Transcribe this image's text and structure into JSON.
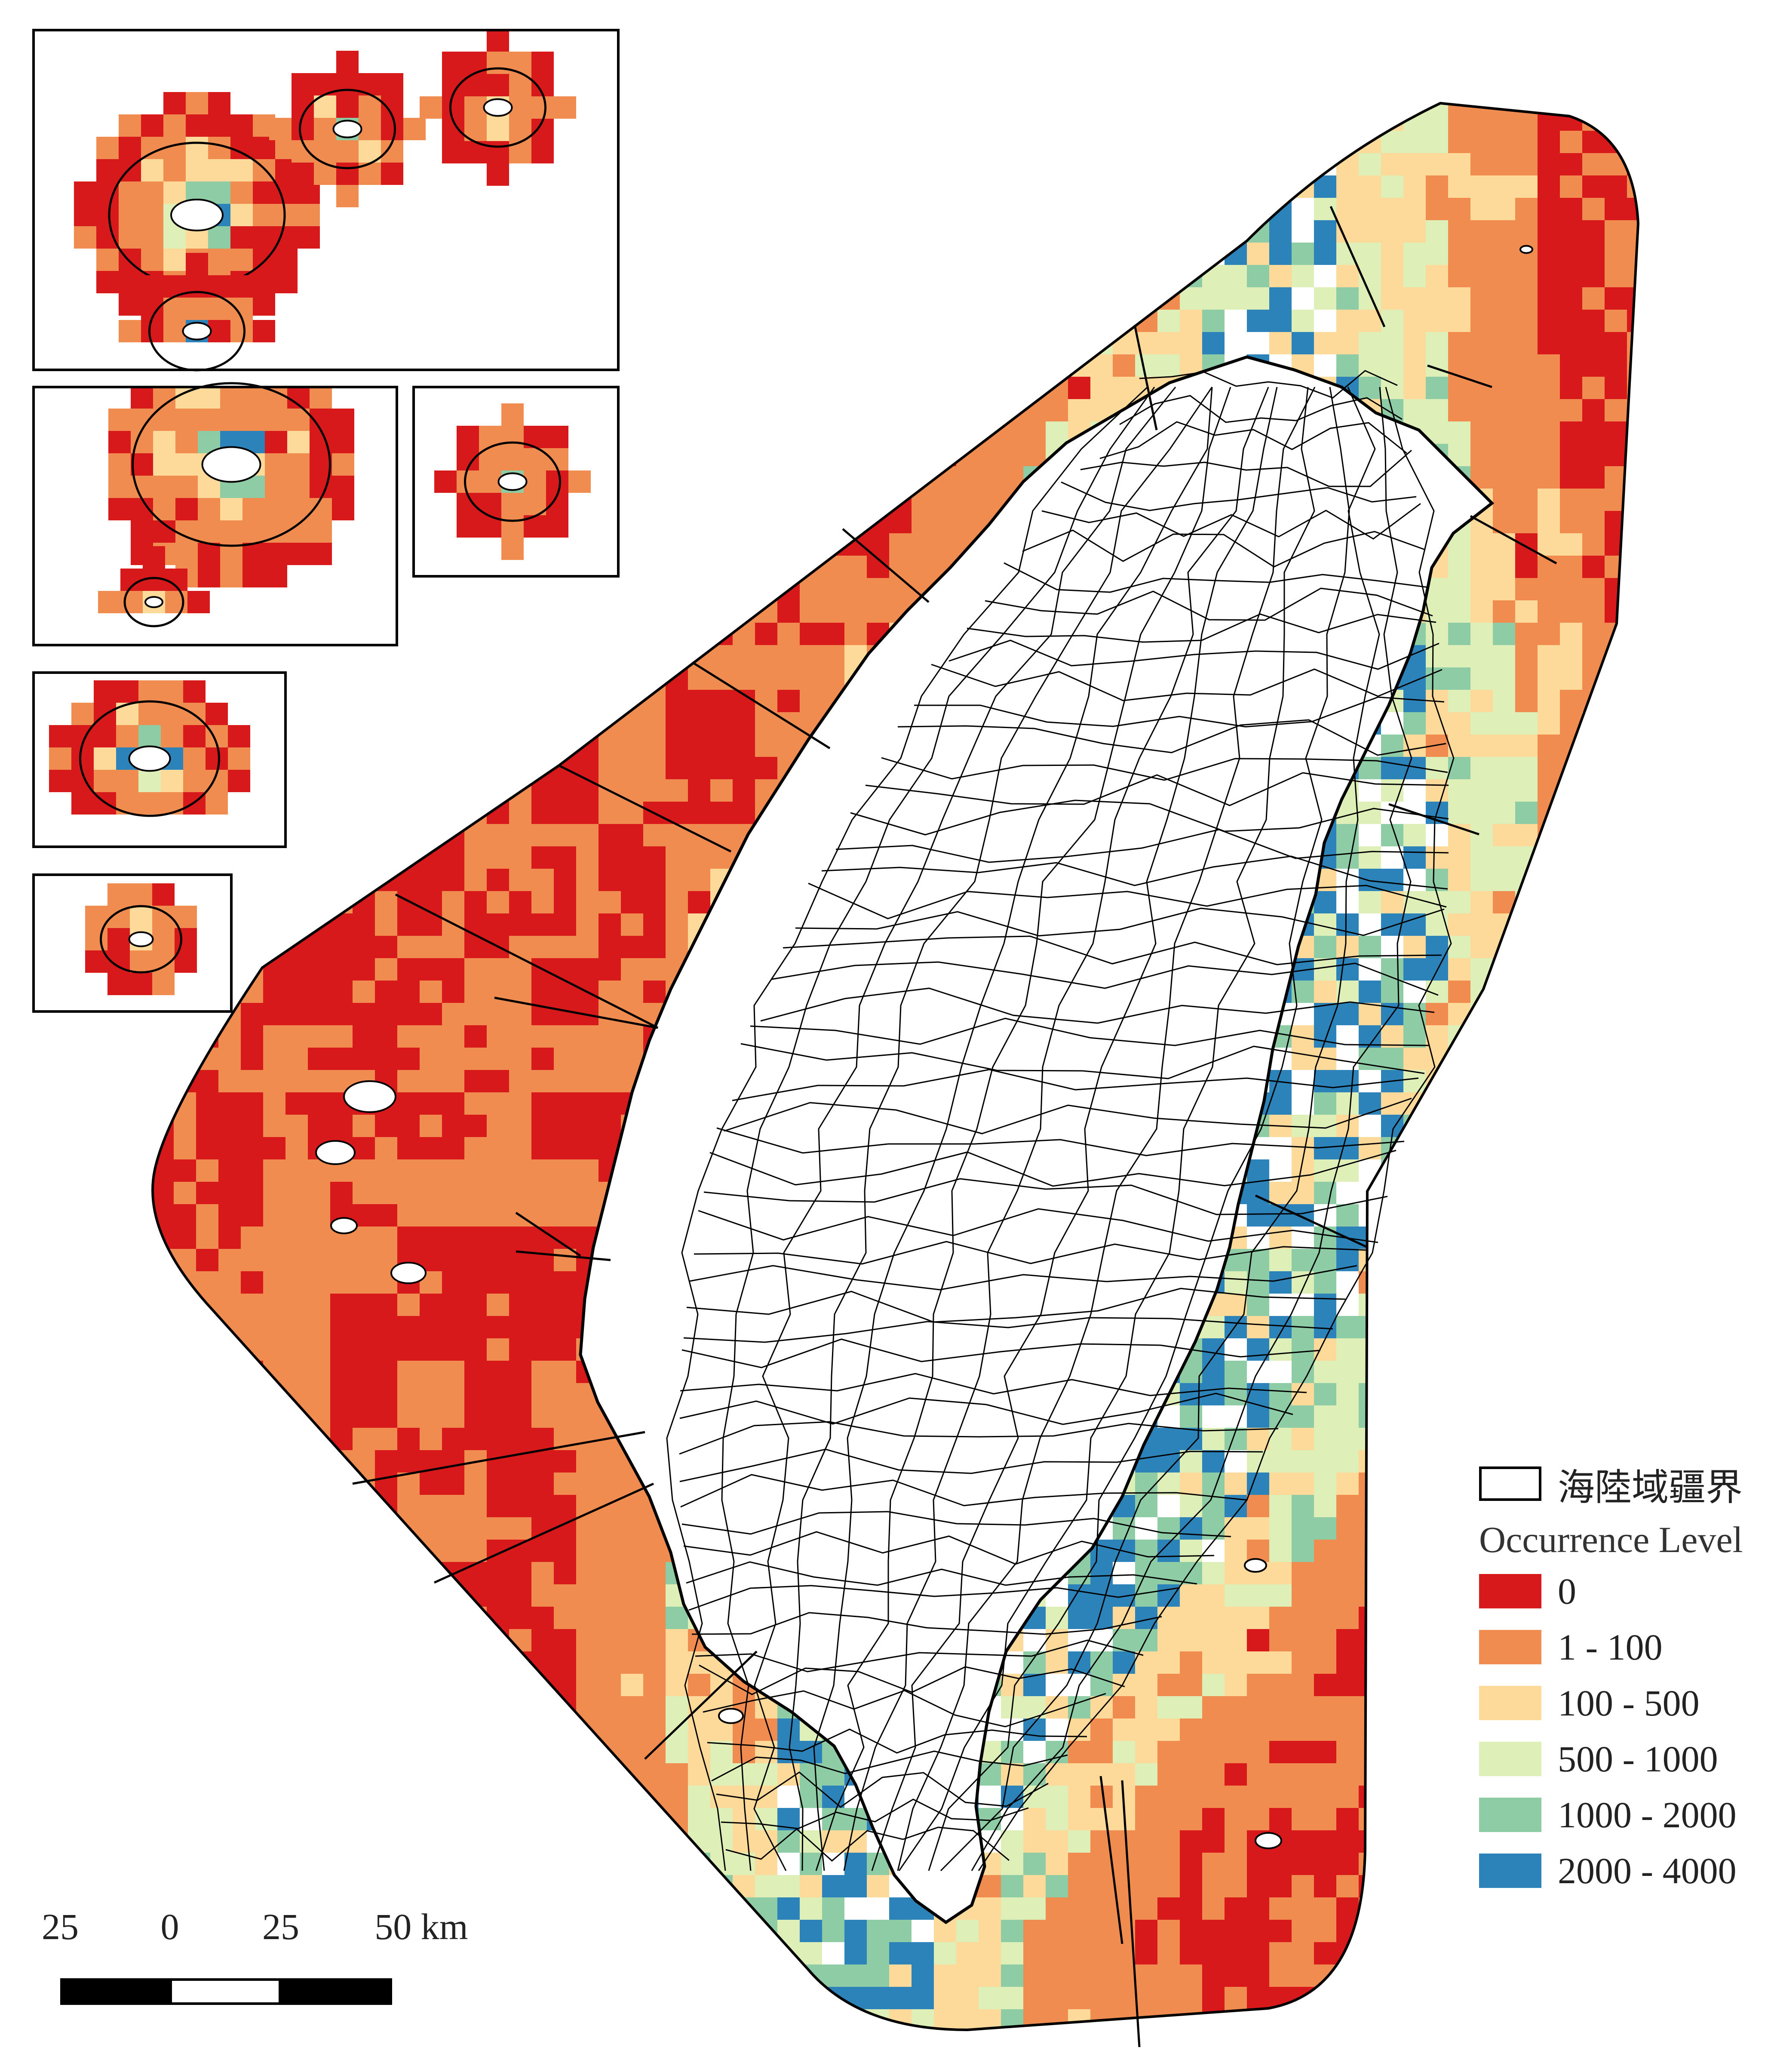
{
  "legend": {
    "boundary_label": "海陸域疆界",
    "title": "Occurrence Level",
    "classes": [
      {
        "label": "0",
        "color": "#d7191c"
      },
      {
        "label": "1 - 100",
        "color": "#f08c4f"
      },
      {
        "label": "100 - 500",
        "color": "#fdd99a"
      },
      {
        "label": "500 - 1000",
        "color": "#dfefb8"
      },
      {
        "label": "1000 - 2000",
        "color": "#8ecca5"
      },
      {
        "label": "2000 - 4000",
        "color": "#2b83ba"
      }
    ]
  },
  "scale_bar": {
    "labels": [
      "25",
      "0",
      "25",
      "50 km"
    ]
  },
  "colors": {
    "land": "#ffffff",
    "boundary": "#000000"
  }
}
